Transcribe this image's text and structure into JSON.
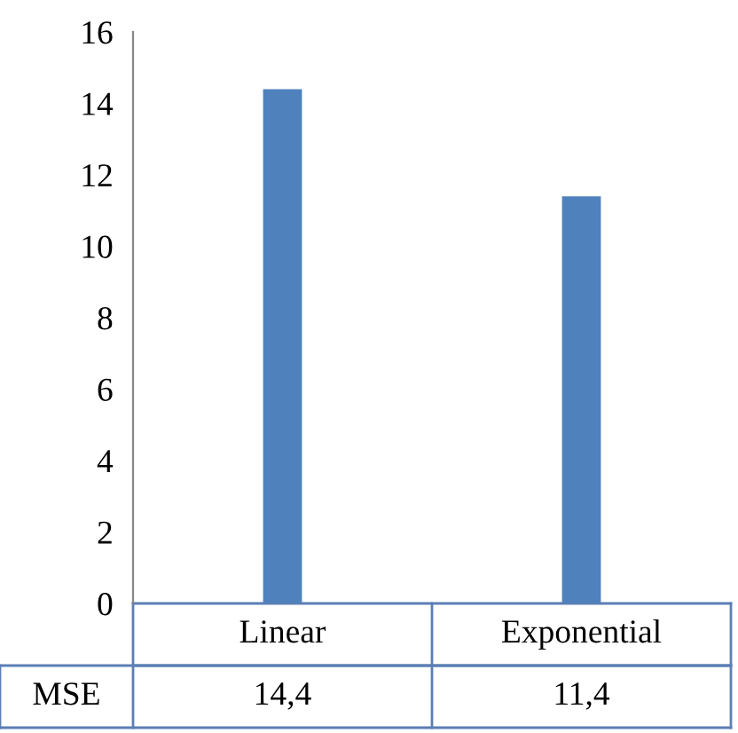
{
  "chart_data": {
    "type": "bar",
    "categories": [
      "Linear",
      "Exponential"
    ],
    "series": [
      {
        "name": "MSE",
        "color": "#4f81bd",
        "values": [
          14.4,
          11.4
        ],
        "value_labels": [
          "14,4",
          "11,4"
        ]
      }
    ],
    "ylim": [
      0,
      16
    ],
    "yticks": [
      0,
      2,
      4,
      6,
      8,
      10,
      12,
      14,
      16
    ],
    "grid": false,
    "legend": "bottom"
  }
}
